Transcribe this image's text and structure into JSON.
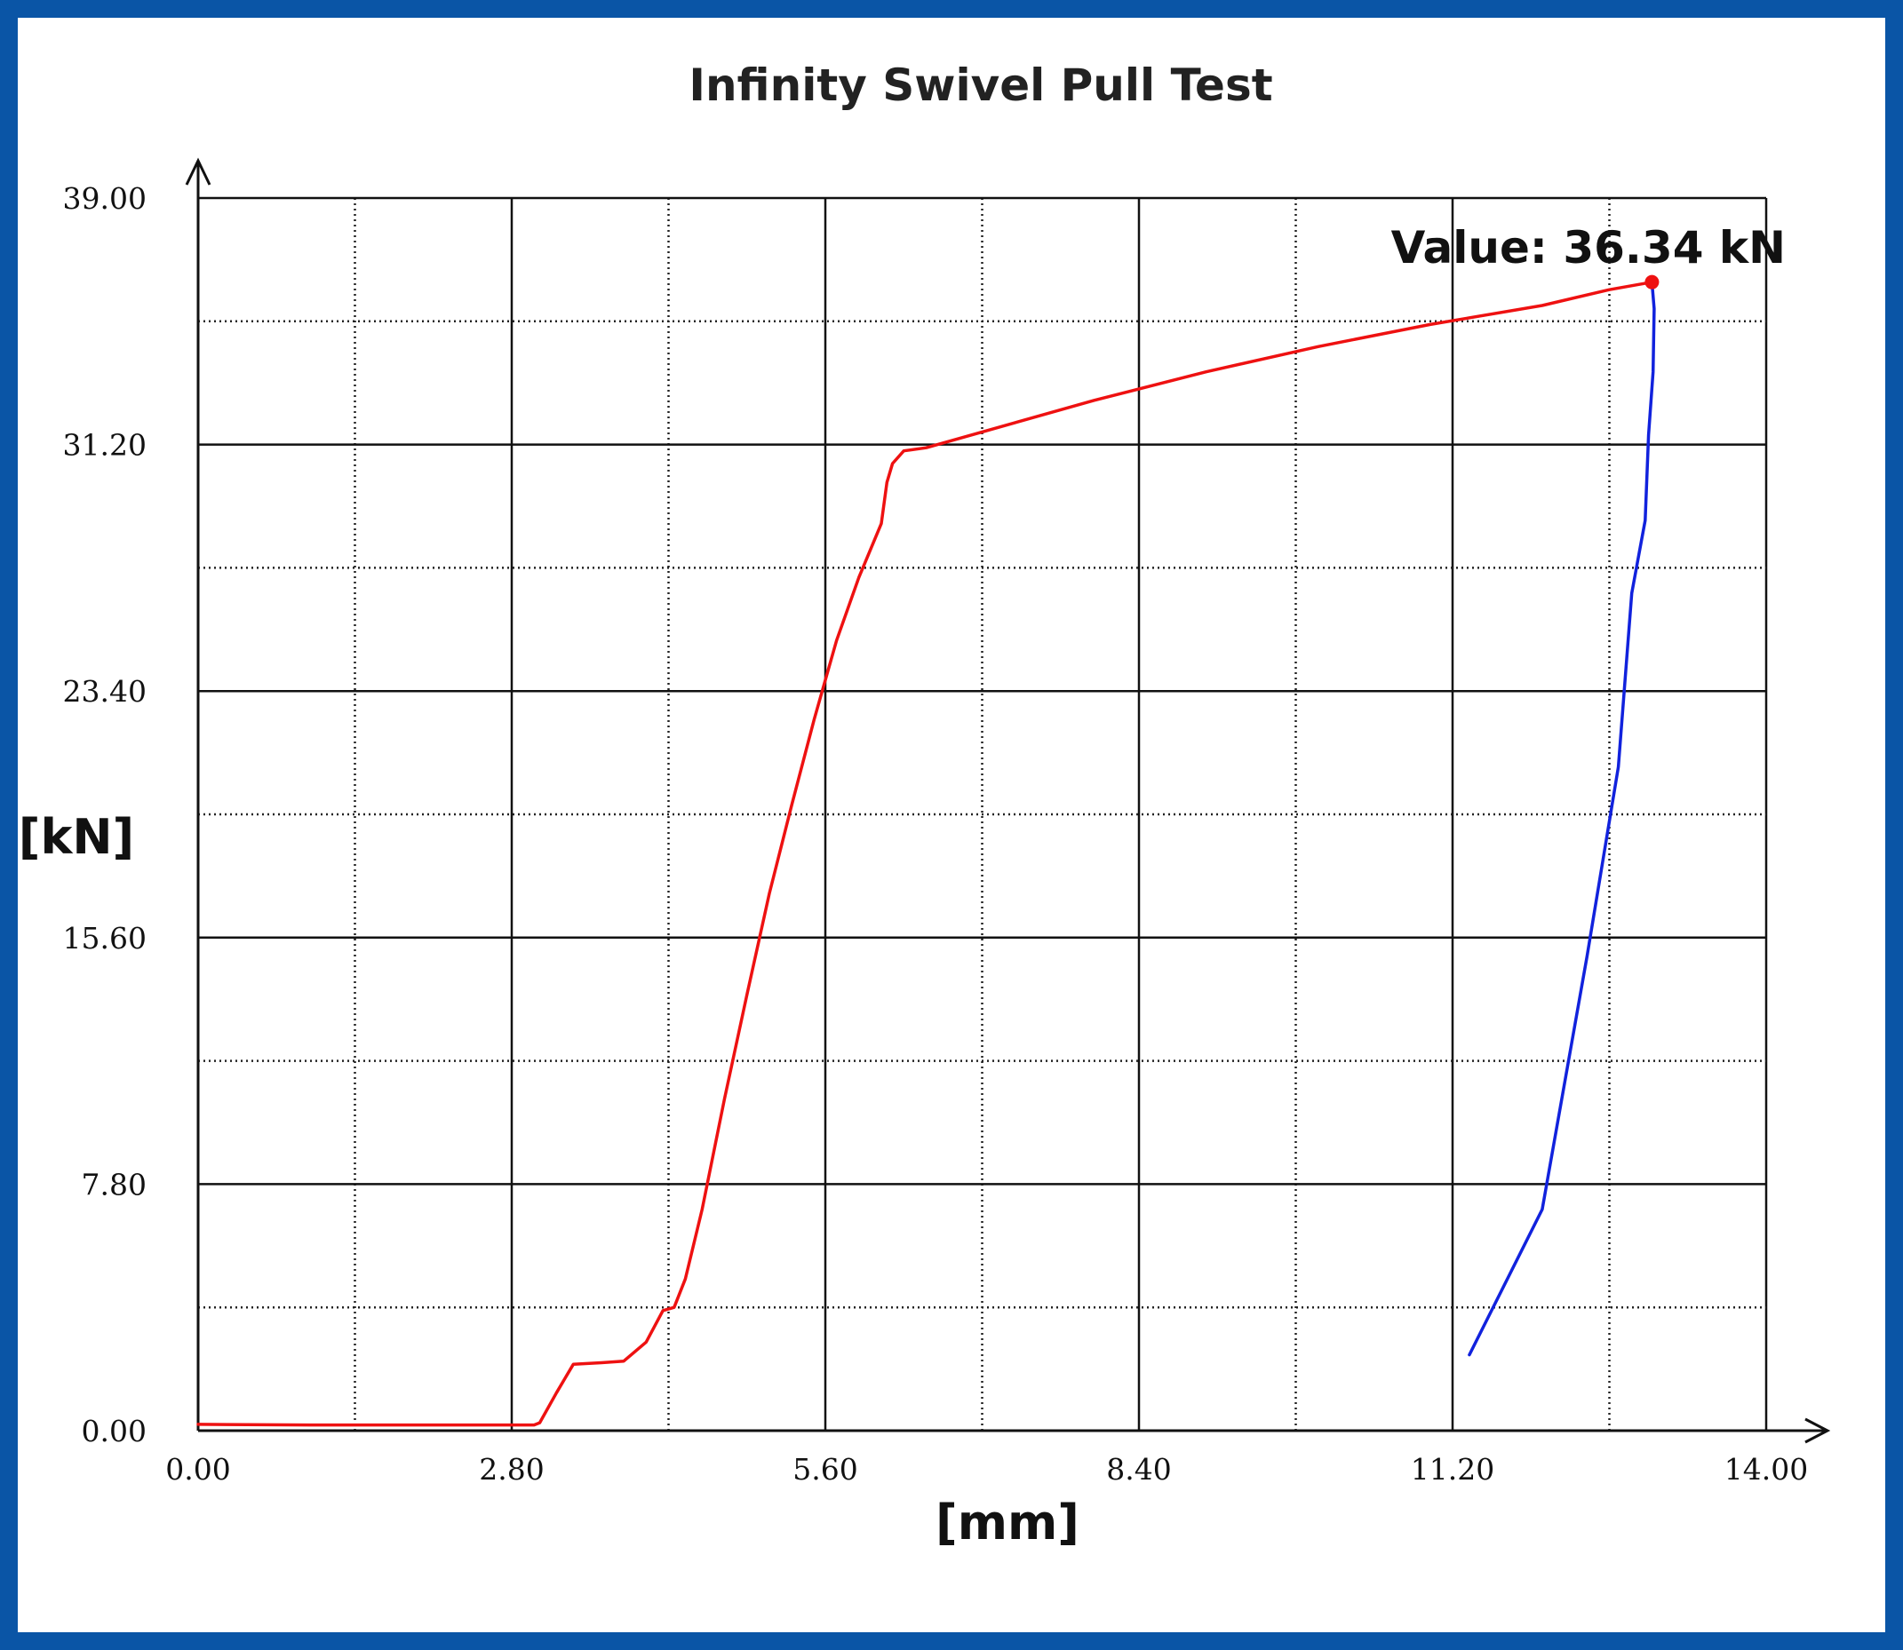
{
  "chart_data": {
    "type": "line",
    "title": "Infinity Swivel Pull Test",
    "xlabel": "[mm]",
    "ylabel": "[kN]",
    "xlim": [
      0,
      14
    ],
    "ylim": [
      0,
      39
    ],
    "x_ticks": [
      "0.00",
      "2.80",
      "5.60",
      "8.40",
      "11.20",
      "14.00"
    ],
    "y_ticks": [
      "0.00",
      "7.80",
      "15.60",
      "23.40",
      "31.20",
      "39.00"
    ],
    "grid": true,
    "colors": {
      "loading": "#ee1111",
      "unloading": "#1122dd"
    },
    "series": [
      {
        "points": [
          [
            0.0,
            0.2
          ],
          [
            1.0,
            0.18
          ],
          [
            2.0,
            0.18
          ],
          [
            3.0,
            0.18
          ],
          [
            3.05,
            0.25
          ],
          [
            3.2,
            1.2
          ],
          [
            3.35,
            2.1
          ],
          [
            3.6,
            2.15
          ],
          [
            3.8,
            2.2
          ],
          [
            4.0,
            2.8
          ],
          [
            4.15,
            3.8
          ],
          [
            4.25,
            3.9
          ],
          [
            4.35,
            4.8
          ],
          [
            4.5,
            7.0
          ],
          [
            4.7,
            10.5
          ],
          [
            4.9,
            13.8
          ],
          [
            5.1,
            17.0
          ],
          [
            5.3,
            19.8
          ],
          [
            5.5,
            22.5
          ],
          [
            5.7,
            25.0
          ],
          [
            5.9,
            27.0
          ],
          [
            6.1,
            28.7
          ],
          [
            6.15,
            30.0
          ],
          [
            6.2,
            30.6
          ],
          [
            6.3,
            31.0
          ],
          [
            6.5,
            31.1
          ],
          [
            7.0,
            31.6
          ],
          [
            8.0,
            32.6
          ],
          [
            9.0,
            33.5
          ],
          [
            10.0,
            34.3
          ],
          [
            11.0,
            35.0
          ],
          [
            12.0,
            35.6
          ],
          [
            12.6,
            36.1
          ],
          [
            12.98,
            36.34
          ]
        ]
      },
      {
        "points": [
          [
            12.98,
            36.34
          ],
          [
            13.0,
            35.5
          ],
          [
            12.99,
            33.5
          ],
          [
            12.95,
            31.5
          ],
          [
            12.92,
            28.8
          ],
          [
            12.8,
            26.5
          ],
          [
            12.68,
            21.0
          ],
          [
            12.4,
            15.0
          ],
          [
            12.0,
            7.0
          ],
          [
            11.35,
            2.4
          ]
        ]
      }
    ],
    "annotation": {
      "text": "Value: 36.34 kN",
      "x": 12.98,
      "y": 36.34
    }
  }
}
